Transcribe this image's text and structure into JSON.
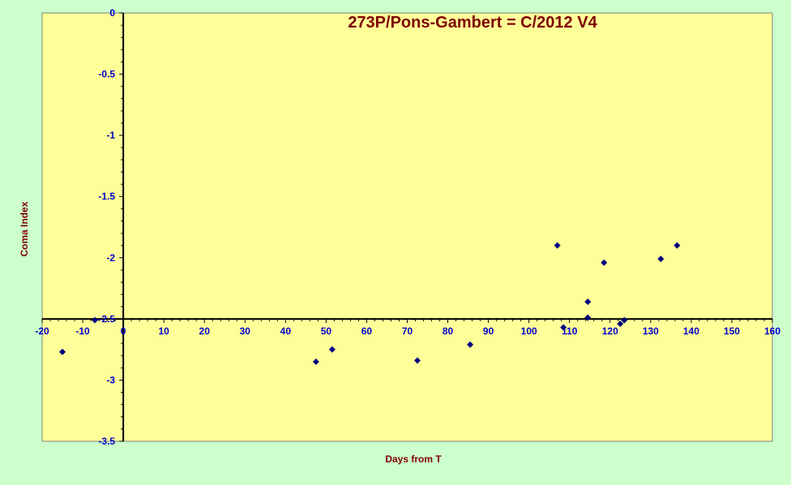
{
  "chart_data": {
    "type": "scatter",
    "title": "273P/Pons-Gambert = C/2012 V4",
    "xlabel": "Days  from T",
    "ylabel": "Coma Index",
    "xlim": [
      -20,
      160
    ],
    "ylim": [
      -3.5,
      0
    ],
    "x_ticks": [
      "-20",
      "-10",
      "0",
      "10",
      "20",
      "30",
      "40",
      "50",
      "60",
      "70",
      "80",
      "90",
      "100",
      "110",
      "120",
      "130",
      "140",
      "150",
      "160"
    ],
    "y_ticks": [
      "0",
      "-0.5",
      "-1",
      "-1.5",
      "-2",
      "-2.5",
      "-3",
      "-3.5"
    ],
    "x_axis_crosses_y": -2.5,
    "y_axis_crosses_x": 0,
    "grid": false,
    "marker": "diamond",
    "colors": {
      "plot_background": "#ffff99",
      "chart_background": "#ccffcc",
      "marker": "#000080",
      "title": "#800000",
      "tick_labels": "#0000cc"
    },
    "series": [
      {
        "points": [
          [
            -15,
            -2.77
          ],
          [
            -7,
            -2.51
          ],
          [
            47.5,
            -2.85
          ],
          [
            51.5,
            -2.75
          ],
          [
            72.5,
            -2.84
          ],
          [
            85.5,
            -2.71
          ],
          [
            107,
            -1.9
          ],
          [
            108.5,
            -2.57
          ],
          [
            114.5,
            -2.36
          ],
          [
            114.5,
            -2.49
          ],
          [
            118.5,
            -2.04
          ],
          [
            122.5,
            -2.54
          ],
          [
            123.5,
            -2.51
          ],
          [
            132.5,
            -2.01
          ],
          [
            136.5,
            -1.9
          ]
        ]
      }
    ]
  }
}
